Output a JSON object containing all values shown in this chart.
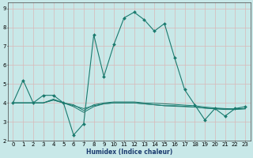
{
  "title": "",
  "xlabel": "Humidex (Indice chaleur)",
  "ylabel": "",
  "bg_color": "#c8e8e8",
  "grid_color": "#b0d8d8",
  "line_color": "#1a7a6e",
  "xlim": [
    -0.5,
    23.5
  ],
  "ylim": [
    2,
    9.3
  ],
  "x_ticks": [
    0,
    1,
    2,
    3,
    4,
    5,
    6,
    7,
    8,
    9,
    10,
    11,
    12,
    13,
    14,
    15,
    16,
    17,
    18,
    19,
    20,
    21,
    22,
    23
  ],
  "y_ticks": [
    2,
    3,
    4,
    5,
    6,
    7,
    8,
    9
  ],
  "series_main": [
    4.0,
    5.2,
    4.0,
    4.4,
    4.4,
    4.0,
    2.3,
    2.9,
    7.6,
    5.4,
    7.1,
    8.5,
    8.8,
    8.4,
    7.8,
    8.2,
    6.4,
    4.7,
    3.9,
    3.1,
    3.7,
    3.3,
    3.7,
    3.8
  ],
  "series_flat1": [
    4.0,
    4.0,
    4.0,
    4.0,
    4.15,
    4.0,
    3.85,
    3.7,
    3.85,
    3.95,
    4.0,
    4.0,
    4.0,
    3.95,
    3.9,
    3.85,
    3.85,
    3.82,
    3.78,
    3.73,
    3.7,
    3.68,
    3.68,
    3.7
  ],
  "series_flat2": [
    4.0,
    4.0,
    4.0,
    4.0,
    4.15,
    4.0,
    3.9,
    3.6,
    3.9,
    4.0,
    4.05,
    4.05,
    4.05,
    4.0,
    3.98,
    3.95,
    3.92,
    3.88,
    3.85,
    3.78,
    3.73,
    3.7,
    3.68,
    3.7
  ],
  "series_flat3": [
    4.0,
    4.0,
    4.0,
    4.0,
    4.2,
    4.0,
    3.8,
    3.5,
    3.8,
    3.95,
    4.0,
    4.0,
    4.0,
    3.95,
    3.9,
    3.85,
    3.82,
    3.8,
    3.78,
    3.72,
    3.68,
    3.65,
    3.65,
    3.68
  ]
}
